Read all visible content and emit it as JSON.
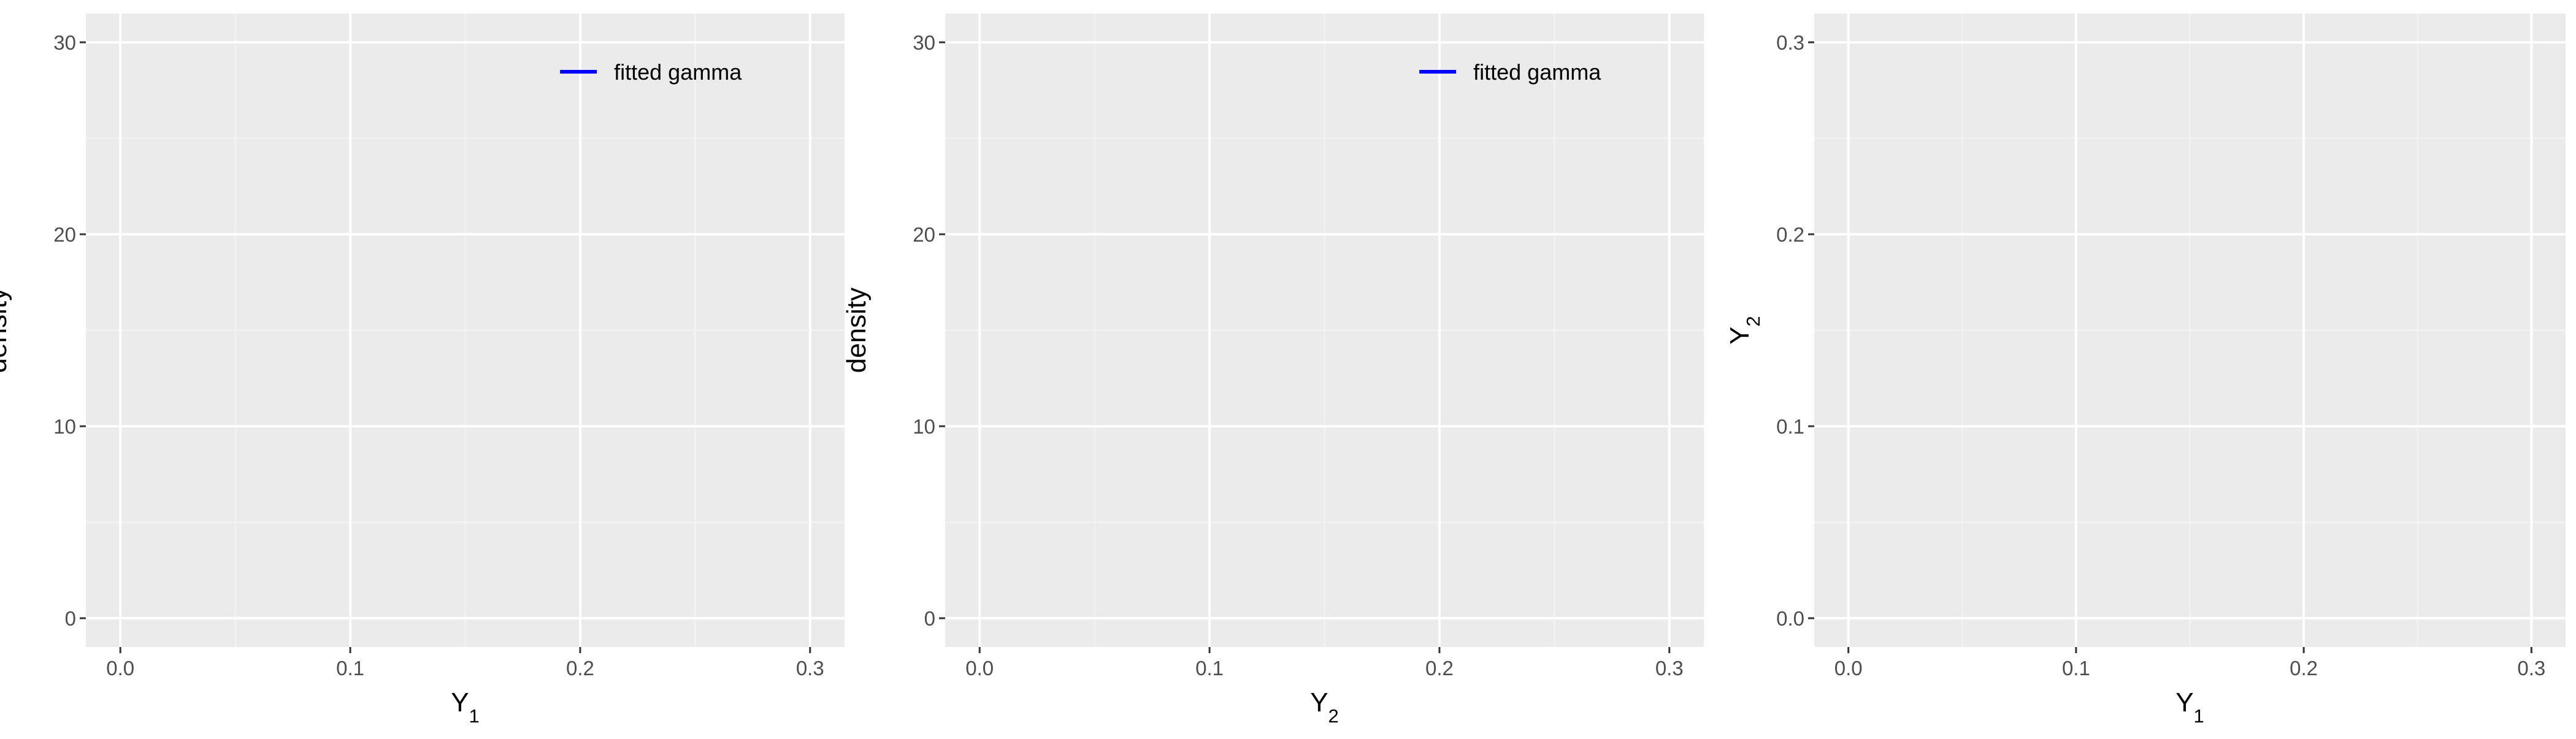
{
  "theme": {
    "panel_bg": "#ebebeb",
    "grid_major": "#ffffff",
    "grid_minor": "#f4f4f4",
    "tick_color": "#333333",
    "legend_line_color": "#0000ff"
  },
  "chart_data": [
    {
      "type": "line",
      "title": "",
      "xlabel": {
        "base": "Y",
        "sub": "1"
      },
      "ylabel": "density",
      "xlim": [
        -0.015,
        0.315
      ],
      "ylim": [
        -1.5,
        31.5
      ],
      "x_ticks": [
        0.0,
        0.1,
        0.2,
        0.3
      ],
      "x_tick_labels": [
        "0.0",
        "0.1",
        "0.2",
        "0.3"
      ],
      "y_ticks": [
        0,
        10,
        20,
        30
      ],
      "y_tick_labels": [
        "0",
        "10",
        "20",
        "30"
      ],
      "grid": true,
      "legend": {
        "position": "top-right",
        "entries": [
          {
            "label": "fitted gamma",
            "color": "#0000ff"
          }
        ]
      },
      "series": []
    },
    {
      "type": "line",
      "title": "",
      "xlabel": {
        "base": "Y",
        "sub": "2"
      },
      "ylabel": "density",
      "xlim": [
        -0.015,
        0.315
      ],
      "ylim": [
        -1.5,
        31.5
      ],
      "x_ticks": [
        0.0,
        0.1,
        0.2,
        0.3
      ],
      "x_tick_labels": [
        "0.0",
        "0.1",
        "0.2",
        "0.3"
      ],
      "y_ticks": [
        0,
        10,
        20,
        30
      ],
      "y_tick_labels": [
        "0",
        "10",
        "20",
        "30"
      ],
      "grid": true,
      "legend": {
        "position": "top-right",
        "entries": [
          {
            "label": "fitted gamma",
            "color": "#0000ff"
          }
        ]
      },
      "series": []
    },
    {
      "type": "scatter",
      "title": "",
      "xlabel": {
        "base": "Y",
        "sub": "1"
      },
      "ylabel": {
        "base": "Y",
        "sub": "2"
      },
      "xlim": [
        -0.015,
        0.315
      ],
      "ylim": [
        -0.015,
        0.315
      ],
      "x_ticks": [
        0.0,
        0.1,
        0.2,
        0.3
      ],
      "x_tick_labels": [
        "0.0",
        "0.1",
        "0.2",
        "0.3"
      ],
      "y_ticks": [
        0.0,
        0.1,
        0.2,
        0.3
      ],
      "y_tick_labels": [
        "0.0",
        "0.1",
        "0.2",
        "0.3"
      ],
      "grid": true,
      "legend": null,
      "series": []
    }
  ]
}
